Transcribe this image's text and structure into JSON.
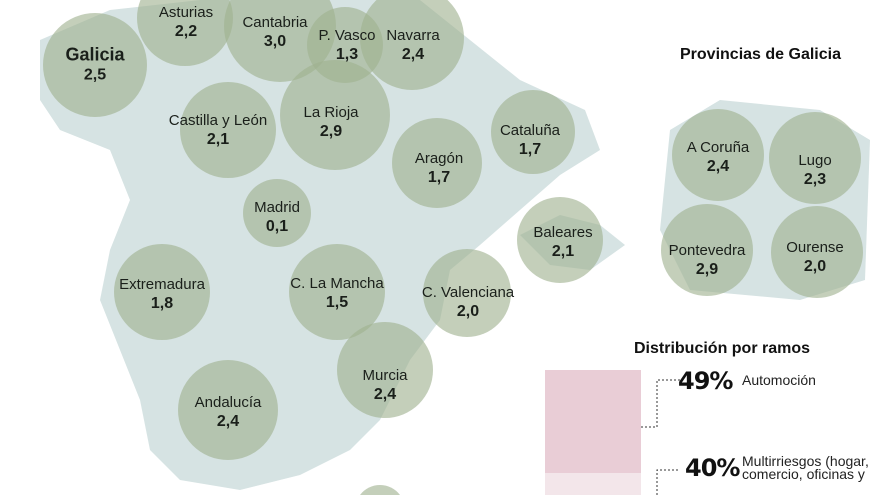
{
  "regions": [
    {
      "name": "Galicia",
      "value": "2,5"
    },
    {
      "name": "Asturias",
      "value": "2,2"
    },
    {
      "name": "Cantabria",
      "value": "3,0"
    },
    {
      "name": "P. Vasco",
      "value": "1,3"
    },
    {
      "name": "Navarra",
      "value": "2,4"
    },
    {
      "name": "Castilla y León",
      "value": "2,1"
    },
    {
      "name": "La Rioja",
      "value": "2,9"
    },
    {
      "name": "Aragón",
      "value": "1,7"
    },
    {
      "name": "Cataluña",
      "value": "1,7"
    },
    {
      "name": "Madrid",
      "value": "0,1"
    },
    {
      "name": "Baleares",
      "value": "2,1"
    },
    {
      "name": "Extremadura",
      "value": "1,8"
    },
    {
      "name": "C. La Mancha",
      "value": "1,5"
    },
    {
      "name": "C. Valenciana",
      "value": "2,0"
    },
    {
      "name": "Murcia",
      "value": "2,4"
    },
    {
      "name": "Andalucía",
      "value": "2,4"
    }
  ],
  "galicia": {
    "title": "Provincias de Galicia",
    "provinces": [
      {
        "name": "A Coruña",
        "value": "2,4"
      },
      {
        "name": "Lugo",
        "value": "2,3"
      },
      {
        "name": "Pontevedra",
        "value": "2,9"
      },
      {
        "name": "Ourense",
        "value": "2,0"
      }
    ]
  },
  "distribution": {
    "title": "Distribución por ramos",
    "items": [
      {
        "pct": "49%",
        "label": "Automoción"
      },
      {
        "pct": "40%",
        "label": "Multirriesgos (hogar, comercio, oficinas y"
      }
    ]
  },
  "colors": {
    "land": "#d6e3e3",
    "bubble": "#9fb290",
    "bar1": "#e9cdd6",
    "bar2": "#f3e6ea"
  }
}
